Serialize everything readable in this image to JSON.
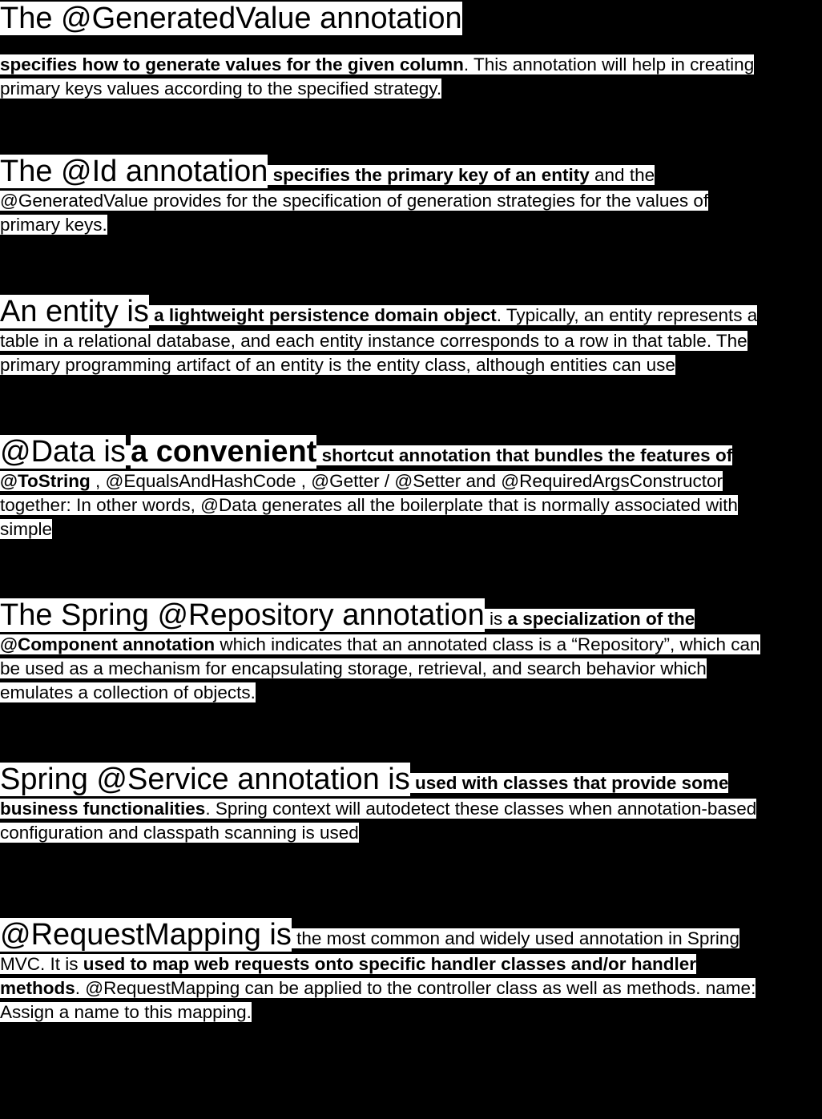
{
  "sections": [
    {
      "heading": "The @GeneratedValue annotation",
      "lines": [
        [
          {
            "t": " specifies how to generate values for the given column",
            "b": true
          },
          {
            "t": ". This annotation will help in creating"
          }
        ],
        [
          {
            "t": "primary keys values according to the specified strategy."
          }
        ]
      ]
    },
    {
      "heading": "The @Id annotation",
      "first_rest": [
        {
          "t": " "
        },
        {
          "t": "specifies the primary key of an entity",
          "b": true
        },
        {
          "t": " and the"
        }
      ],
      "lines": [
        [
          {
            "t": "@GeneratedValue provides for the specification of generation strategies for the values of"
          }
        ],
        [
          {
            "t": "primary keys."
          }
        ]
      ]
    },
    {
      "heading": "An entity is",
      "first_rest": [
        {
          "t": " "
        },
        {
          "t": "a lightweight persistence domain object",
          "b": true
        },
        {
          "t": ". Typically, an entity represents a"
        }
      ],
      "lines": [
        [
          {
            "t": "table in a relational database, and each entity instance corresponds to a row in that table. The"
          }
        ],
        [
          {
            "t": "primary programming artifact of an entity is the entity class, although entities can use"
          }
        ]
      ]
    },
    {
      "heading": "@Data is",
      "first_rest": [
        {
          "t": " "
        },
        {
          "t": "a convenient",
          "b": true,
          "big": true
        },
        {
          "t": " "
        },
        {
          "t": "shortcut annotation that bundles the features of",
          "b": true
        }
      ],
      "lines": [
        [
          {
            "t": "@ToString",
            "b": true
          },
          {
            "t": " , @EqualsAndHashCode , @Getter / @Setter and @RequiredArgsConstructor"
          }
        ],
        [
          {
            "t": "together: In other words, @Data generates all the boilerplate that is normally associated with"
          }
        ],
        [
          {
            "t": "simple"
          }
        ]
      ]
    },
    {
      "heading": "The Spring @Repository annotation",
      "first_rest": [
        {
          "t": " is "
        },
        {
          "t": "a specialization of the",
          "b": true
        }
      ],
      "lines": [
        [
          {
            "t": "@Component annotation",
            "b": true
          },
          {
            "t": " which indicates that an annotated class is a “Repository”, which can"
          }
        ],
        [
          {
            "t": "be used as a mechanism for encapsulating storage, retrieval, and search behavior which"
          }
        ],
        [
          {
            "t": "emulates a collection of objects."
          }
        ]
      ]
    },
    {
      "heading": "Spring @Service annotation is",
      "first_rest": [
        {
          "t": " "
        },
        {
          "t": "used with classes that provide some",
          "b": true
        }
      ],
      "lines": [
        [
          {
            "t": "business functionalities",
            "b": true
          },
          {
            "t": ". Spring context will autodetect these classes when annotation-based"
          }
        ],
        [
          {
            "t": "configuration and classpath scanning is used"
          }
        ]
      ]
    },
    {
      "heading": "@RequestMapping is",
      "first_rest": [
        {
          "t": " the most common and widely used annotation in Spring"
        }
      ],
      "lines": [
        [
          {
            "t": "MVC. It is "
          },
          {
            "t": "used to map web requests onto specific handler classes and/or handler",
            "b": true
          }
        ],
        [
          {
            "t": "methods",
            "b": true
          },
          {
            "t": ". @RequestMapping can be applied to the controller class as well as methods. name:"
          }
        ],
        [
          {
            "t": "Assign a name to this mapping."
          }
        ]
      ]
    }
  ]
}
